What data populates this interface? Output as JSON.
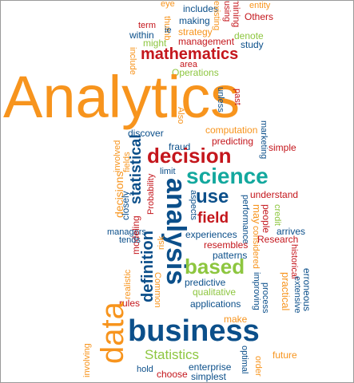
{
  "colors": {
    "orange": "#f7941d",
    "red": "#c4161c",
    "navy": "#0b4f8a",
    "teal": "#13a89e",
    "green": "#8dc63f",
    "gray": "#6d6e71"
  },
  "words": [
    {
      "text": "eye",
      "color": "orange"
    },
    {
      "text": "includes",
      "color": "navy"
    },
    {
      "text": "existing",
      "color": "orange"
    },
    {
      "text": "using",
      "color": "red"
    },
    {
      "text": "mining",
      "color": "red"
    },
    {
      "text": "entity",
      "color": "orange"
    },
    {
      "text": "Others",
      "color": "red"
    },
    {
      "text": "term",
      "color": "red"
    },
    {
      "text": "thumb",
      "color": "orange"
    },
    {
      "text": "making",
      "color": "navy"
    },
    {
      "text": "ie",
      "color": "navy"
    },
    {
      "text": "might",
      "color": "green"
    },
    {
      "text": "within",
      "color": "navy"
    },
    {
      "text": "strategy",
      "color": "orange"
    },
    {
      "text": "denote",
      "color": "green"
    },
    {
      "text": "management",
      "color": "red"
    },
    {
      "text": "study",
      "color": "navy"
    },
    {
      "text": "include",
      "color": "orange"
    },
    {
      "text": "mathematics",
      "color": "red"
    },
    {
      "text": "area",
      "color": "red"
    },
    {
      "text": "Operations",
      "color": "green"
    },
    {
      "text": "Analytics",
      "color": "orange"
    },
    {
      "text": "unless",
      "color": "navy"
    },
    {
      "text": "past",
      "color": "red"
    },
    {
      "text": "Also",
      "color": "orange"
    },
    {
      "text": "discover",
      "color": "navy"
    },
    {
      "text": "computation",
      "color": "orange"
    },
    {
      "text": "predicting",
      "color": "red"
    },
    {
      "text": "marketing",
      "color": "navy"
    },
    {
      "text": "simple",
      "color": "red"
    },
    {
      "text": "involved",
      "color": "orange"
    },
    {
      "text": "fields",
      "color": "orange"
    },
    {
      "text": "statistical",
      "color": "navy"
    },
    {
      "text": "fraud",
      "color": "navy"
    },
    {
      "text": "decision",
      "color": "red"
    },
    {
      "text": "decisions",
      "color": "orange"
    },
    {
      "text": "limit",
      "color": "navy"
    },
    {
      "text": "science",
      "color": "teal"
    },
    {
      "text": "Probability",
      "color": "red"
    },
    {
      "text": "use",
      "color": "navy"
    },
    {
      "text": "understand",
      "color": "red"
    },
    {
      "text": "closely",
      "color": "navy"
    },
    {
      "text": "analysis",
      "color": "navy"
    },
    {
      "text": "aspects",
      "color": "navy"
    },
    {
      "text": "field",
      "color": "red"
    },
    {
      "text": "performance",
      "color": "navy"
    },
    {
      "text": "may",
      "color": "orange"
    },
    {
      "text": "people",
      "color": "red"
    },
    {
      "text": "considered",
      "color": "orange"
    },
    {
      "text": "credit",
      "color": "green"
    },
    {
      "text": "managers",
      "color": "navy"
    },
    {
      "text": "modeling",
      "color": "red"
    },
    {
      "text": "tends",
      "color": "navy"
    },
    {
      "text": "experiences",
      "color": "navy"
    },
    {
      "text": "arrives",
      "color": "navy"
    },
    {
      "text": "risk",
      "color": "orange"
    },
    {
      "text": "definition",
      "color": "navy"
    },
    {
      "text": "resembles",
      "color": "red"
    },
    {
      "text": "Research",
      "color": "red"
    },
    {
      "text": "patterns",
      "color": "navy"
    },
    {
      "text": "based",
      "color": "green"
    },
    {
      "text": "historical",
      "color": "red"
    },
    {
      "text": "realistic",
      "color": "orange"
    },
    {
      "text": "Common",
      "color": "orange"
    },
    {
      "text": "erroneous",
      "color": "navy"
    },
    {
      "text": "predictive",
      "color": "navy"
    },
    {
      "text": "qualitative",
      "color": "green"
    },
    {
      "text": "improving",
      "color": "navy"
    },
    {
      "text": "practical",
      "color": "orange"
    },
    {
      "text": "extensive",
      "color": "navy"
    },
    {
      "text": "rules",
      "color": "red"
    },
    {
      "text": "applications",
      "color": "navy"
    },
    {
      "text": "process",
      "color": "navy"
    },
    {
      "text": "data",
      "color": "orange"
    },
    {
      "text": "make",
      "color": "orange"
    },
    {
      "text": "business",
      "color": "navy"
    },
    {
      "text": "involving",
      "color": "orange"
    },
    {
      "text": "Statistics",
      "color": "green"
    },
    {
      "text": "future",
      "color": "orange"
    },
    {
      "text": "enterprise",
      "color": "navy"
    },
    {
      "text": "optimal",
      "color": "navy"
    },
    {
      "text": "order",
      "color": "orange"
    },
    {
      "text": "hold",
      "color": "navy"
    },
    {
      "text": "choose",
      "color": "red"
    },
    {
      "text": "simplest",
      "color": "navy"
    }
  ]
}
